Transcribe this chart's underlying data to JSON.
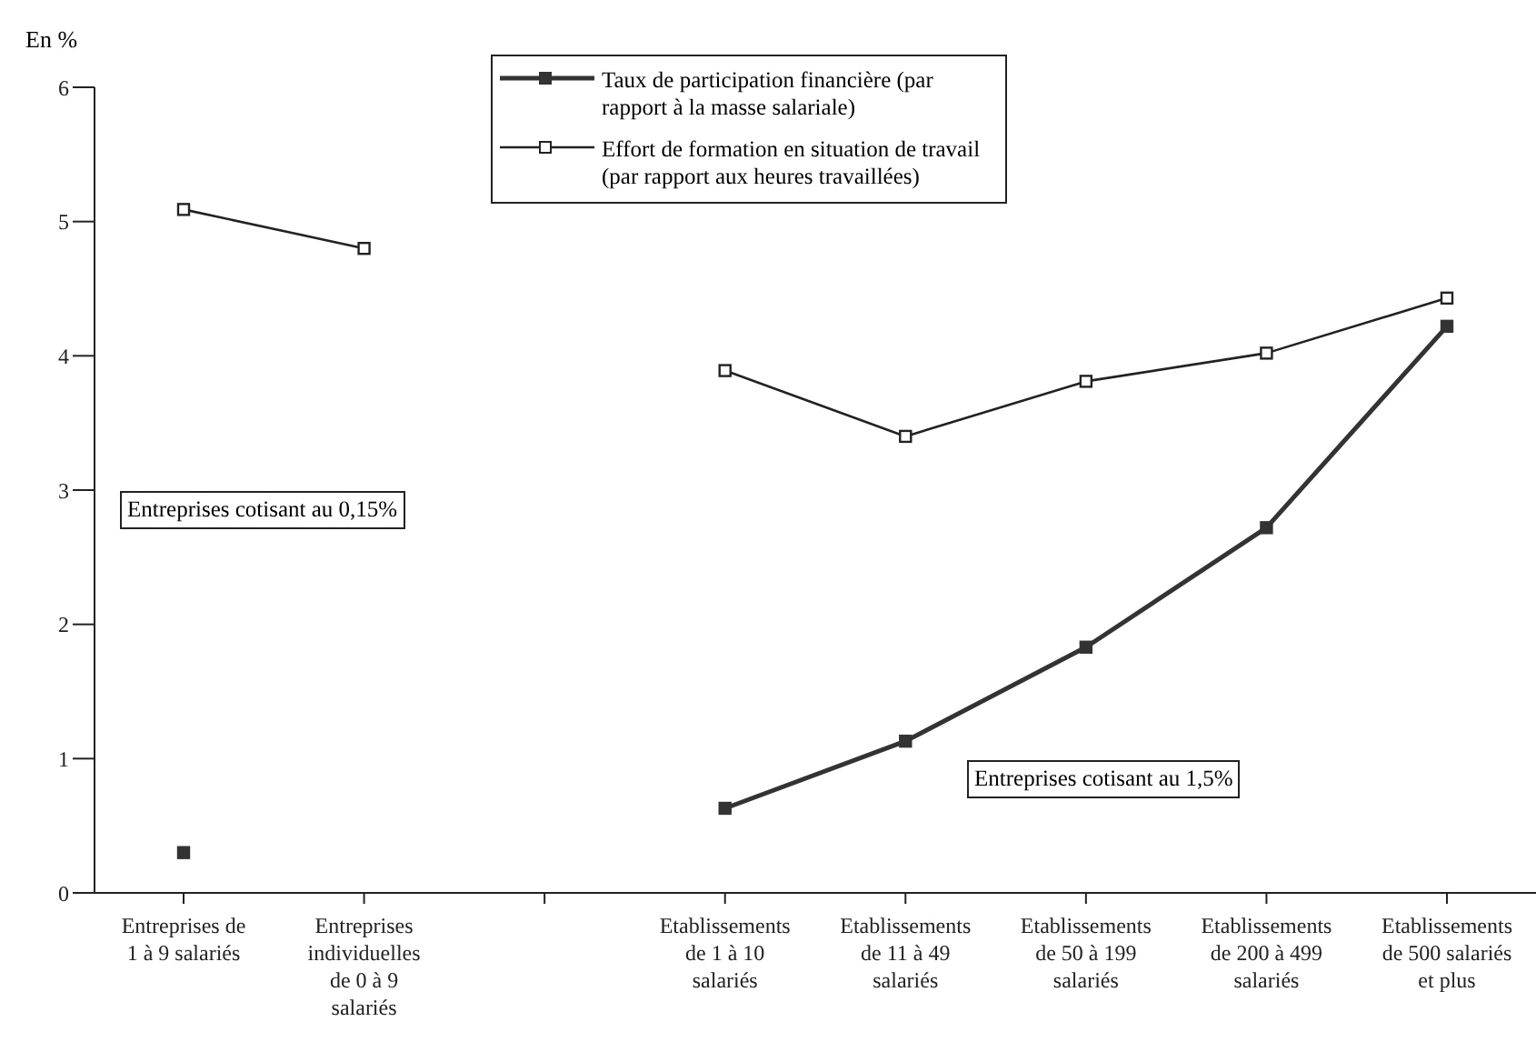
{
  "chart_data": {
    "type": "line",
    "ylabel": "En %",
    "categories": [
      "Entreprises de 1 à 9 salariés",
      "Entreprises individuelles de 0 à 9 salariés",
      null,
      "Etablissements de 1 à 10 salariés",
      "Etablissements de 11 à 49 salariés",
      "Etablissements de 50 à 199 salariés",
      "Etablissements de 200 à 499 salariés",
      "Etablissements de 500 salariés et plus"
    ],
    "series": [
      {
        "name": "Taux de participation financière (par rapport à la masse salariale)",
        "color": "#333333",
        "values": [
          0.3,
          null,
          null,
          0.63,
          1.13,
          1.83,
          2.72,
          4.22
        ]
      },
      {
        "name": "Effort de formation en situation de travail (par rapport aux heures travaillées)",
        "color": "#222222",
        "values": [
          5.09,
          4.8,
          null,
          3.89,
          3.4,
          3.81,
          4.02,
          4.43
        ]
      }
    ],
    "ylim": [
      0,
      6
    ],
    "yticks": [
      0,
      1,
      2,
      3,
      4,
      5,
      6
    ],
    "grid": false,
    "legend": "top",
    "marker": "square",
    "line_style": "solid",
    "annotations": [
      "Entreprises cotisant au 0,15%",
      "Entreprises cotisant au 1,5%"
    ]
  }
}
